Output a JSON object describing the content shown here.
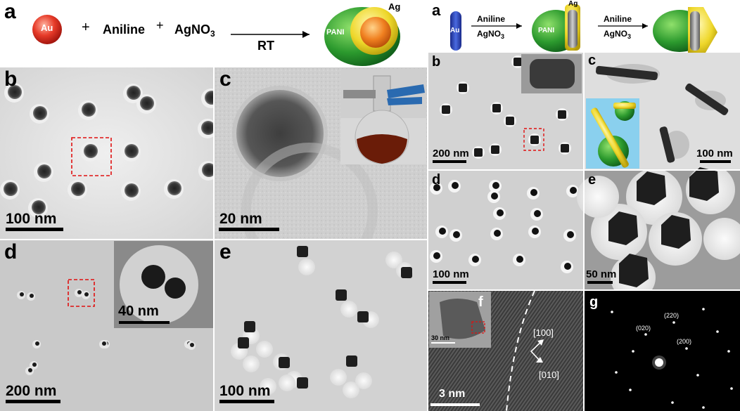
{
  "left": {
    "label_a": "a",
    "scheme": {
      "au": "Au",
      "plus1": "+",
      "aniline": "Aniline",
      "plus2": "+",
      "agno3_main": "AgNO",
      "agno3_sub": "3",
      "arrow_label": "RT",
      "product_ag": "Ag",
      "product_pani": "PANI"
    },
    "panels": {
      "b": {
        "label": "b",
        "scale": "100 nm"
      },
      "c": {
        "label": "c",
        "scale": "20 nm"
      },
      "d": {
        "label": "d",
        "scale": "200 nm",
        "inset_scale": "40 nm"
      },
      "e": {
        "label": "e",
        "scale": "100 nm"
      }
    }
  },
  "right": {
    "label_a": "a",
    "scheme": {
      "au": "Au",
      "step1_top": "Aniline",
      "step1_bottom": "AgNO",
      "step1_sub": "3",
      "mid_ag": "Ag",
      "mid_pani": "PANI",
      "step2_top": "Aniline",
      "step2_bottom": "AgNO",
      "step2_sub": "3"
    },
    "panels": {
      "b": {
        "label": "b",
        "scale": "200 nm"
      },
      "c": {
        "label": "c",
        "scale": "100 nm"
      },
      "d": {
        "label": "d",
        "scale": "100 nm"
      },
      "e": {
        "label": "e",
        "scale": "50 nm"
      },
      "f": {
        "label": "f",
        "scale": "3 nm",
        "inset_scale": "30 nm",
        "dir1": "[100]",
        "dir2": "[010]"
      },
      "g": {
        "label": "g",
        "spots": [
          "(220)",
          "(020)",
          "(200)"
        ]
      }
    }
  },
  "colors": {
    "gold_sphere": "#e23a2a",
    "pani_green": "#2f9a2f",
    "silver_yellow": "#e8d21c",
    "rod_blue": "#2b3fb3"
  }
}
